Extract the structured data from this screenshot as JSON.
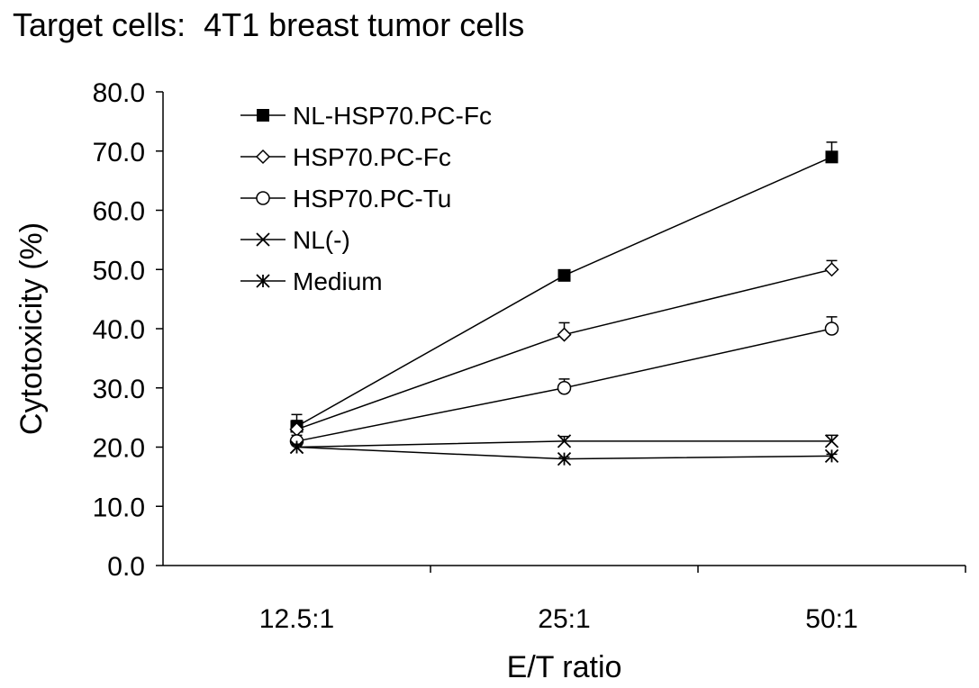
{
  "chart_data": {
    "type": "line",
    "title": "Target cells:  4T1 breast tumor cells",
    "xlabel": "E/T ratio",
    "ylabel": "Cytotoxicity (%)",
    "categories": [
      "12.5:1",
      "25:1",
      "50:1"
    ],
    "ylim": [
      0,
      80
    ],
    "yticks": [
      "0.0",
      "10.0",
      "20.0",
      "30.0",
      "40.0",
      "50.0",
      "60.0",
      "70.0",
      "80.0"
    ],
    "grid": false,
    "legend_position": "top-left",
    "series": [
      {
        "name": "NL-HSP70.PC-Fc",
        "marker": "filled-square",
        "values": [
          23.5,
          49.0,
          69.0
        ],
        "errors": [
          2.0,
          0.8,
          2.5
        ]
      },
      {
        "name": "HSP70.PC-Fc",
        "marker": "open-diamond",
        "values": [
          23.0,
          39.0,
          50.0
        ],
        "errors": [
          1.5,
          2.0,
          1.5
        ]
      },
      {
        "name": "HSP70.PC-Tu",
        "marker": "open-circle",
        "values": [
          21.0,
          30.0,
          40.0
        ],
        "errors": [
          1.0,
          1.5,
          2.0
        ]
      },
      {
        "name": "NL(-)",
        "marker": "x",
        "values": [
          20.0,
          21.0,
          21.0
        ],
        "errors": [
          0.5,
          0.8,
          1.0
        ]
      },
      {
        "name": "Medium",
        "marker": "asterisk",
        "values": [
          20.0,
          18.0,
          18.5
        ],
        "errors": [
          0.3,
          0.3,
          0.3
        ]
      }
    ]
  }
}
